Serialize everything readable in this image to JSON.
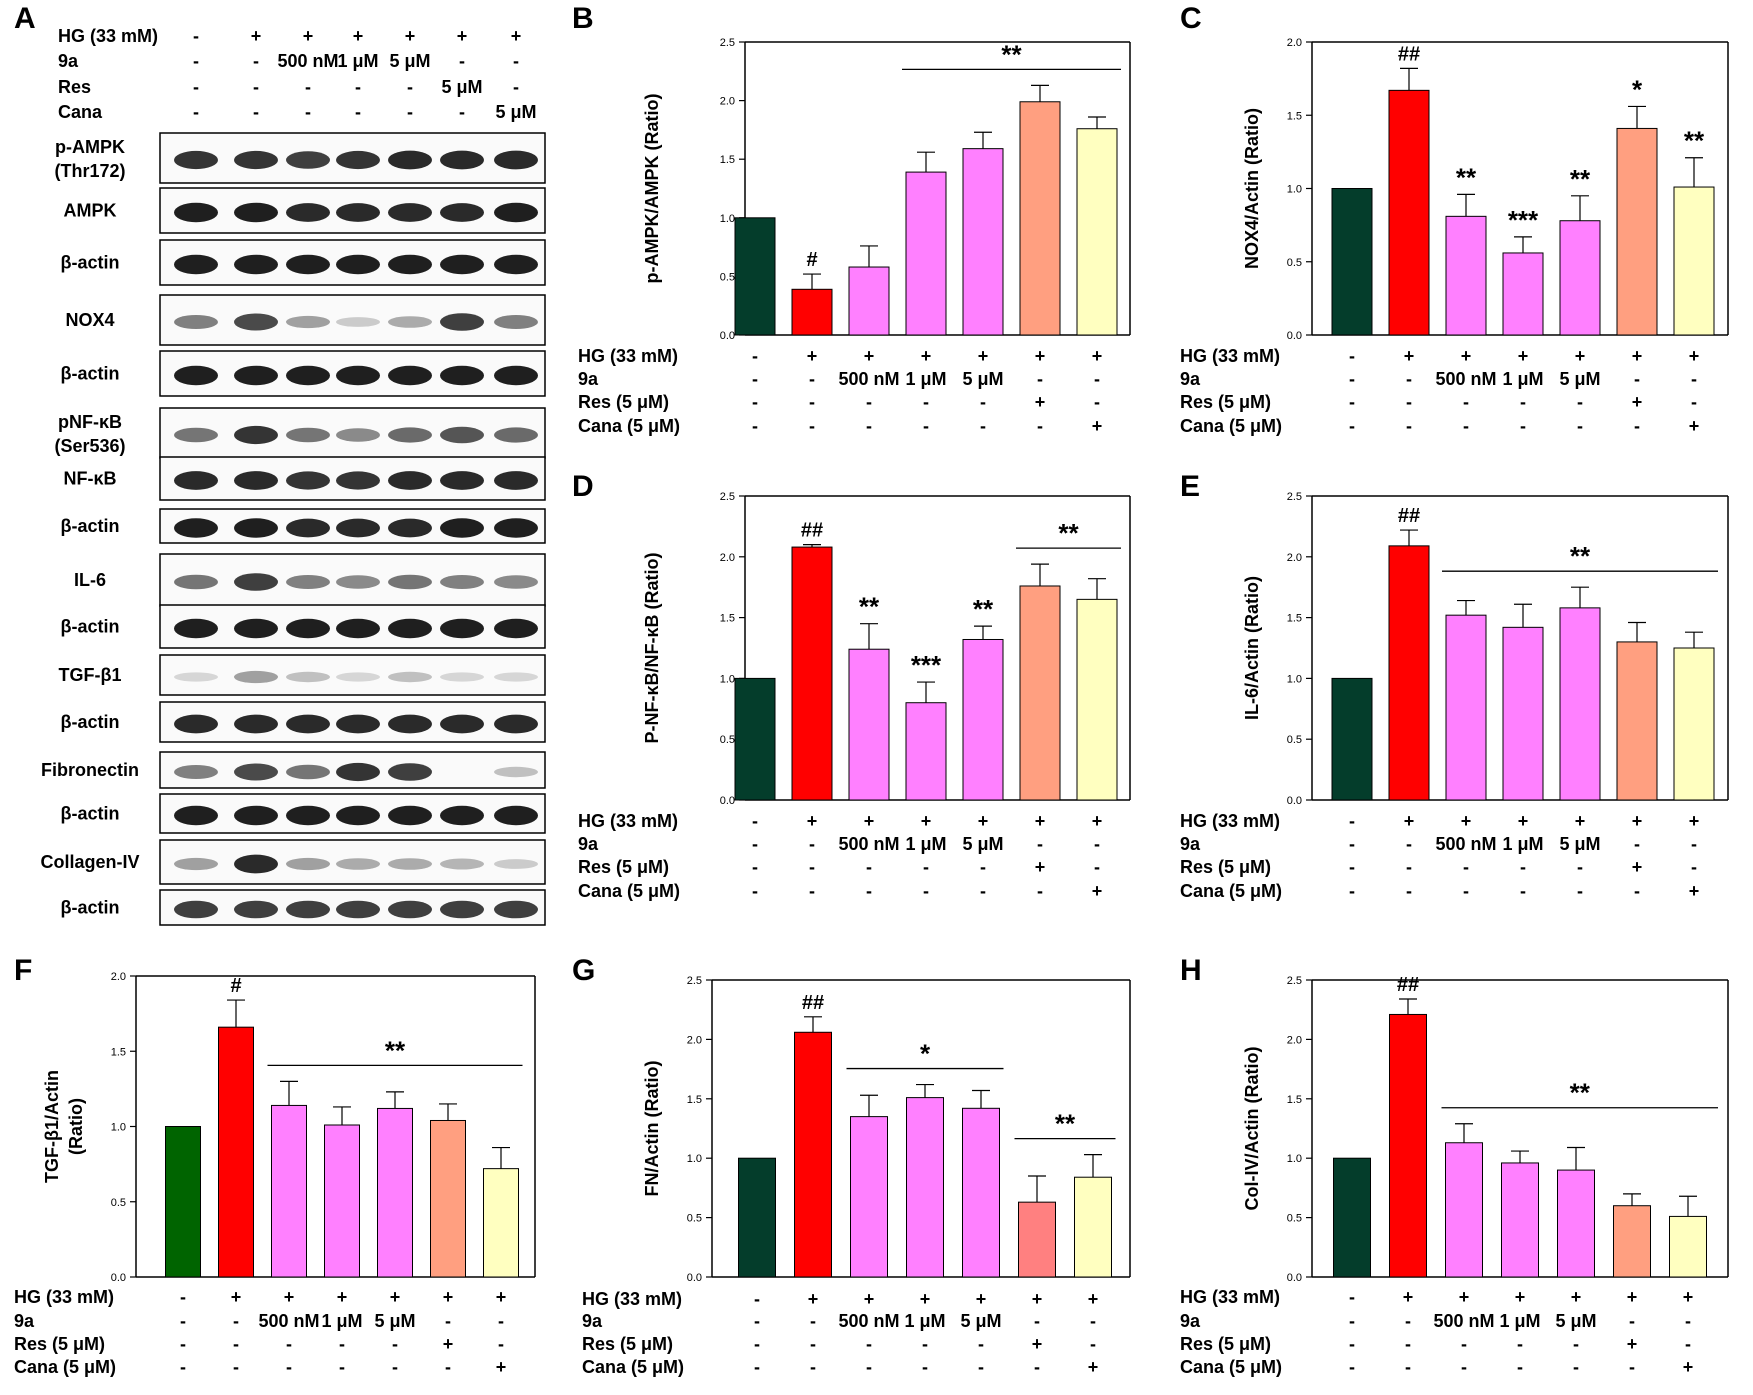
{
  "figure": {
    "panel_letters": [
      "A",
      "B",
      "C",
      "D",
      "E",
      "F",
      "G",
      "H"
    ]
  },
  "panel_a": {
    "treatment_rows": [
      {
        "label": "HG (33 mM)",
        "cells": [
          "-",
          "+",
          "+",
          "+",
          "+",
          "+",
          "+"
        ]
      },
      {
        "label": "9a",
        "cells": [
          "-",
          "-",
          "500 nM",
          "1 μM",
          "5 μM",
          "-",
          "-"
        ]
      },
      {
        "label": "Res",
        "cells": [
          "-",
          "-",
          "-",
          "-",
          "-",
          "5 μM",
          "-"
        ]
      },
      {
        "label": "Cana",
        "cells": [
          "-",
          "-",
          "-",
          "-",
          "-",
          "-",
          "5 μM"
        ]
      }
    ],
    "blots": [
      {
        "label": "p-AMPK\n(Thr172)",
        "intensity": [
          0.85,
          0.85,
          0.8,
          0.85,
          0.9,
          0.9,
          0.9
        ]
      },
      {
        "label": "AMPK",
        "intensity": [
          0.95,
          0.95,
          0.9,
          0.9,
          0.9,
          0.9,
          0.95
        ]
      },
      {
        "label": "β-actin",
        "intensity": [
          0.95,
          0.95,
          0.95,
          0.95,
          0.95,
          0.95,
          0.95
        ]
      },
      {
        "label": "NOX4",
        "intensity": [
          0.5,
          0.75,
          0.35,
          0.15,
          0.3,
          0.8,
          0.5
        ]
      },
      {
        "label": "β-actin",
        "intensity": [
          0.95,
          0.95,
          0.95,
          0.95,
          0.95,
          0.95,
          0.95
        ]
      },
      {
        "label": "pNF-κB\n(Ser536)",
        "intensity": [
          0.55,
          0.85,
          0.55,
          0.45,
          0.6,
          0.7,
          0.6
        ]
      },
      {
        "label": "NF-κB",
        "intensity": [
          0.9,
          0.9,
          0.85,
          0.85,
          0.9,
          0.9,
          0.9
        ]
      },
      {
        "label": "β-actin",
        "intensity": [
          0.95,
          0.95,
          0.9,
          0.9,
          0.9,
          0.95,
          0.95
        ]
      },
      {
        "label": "IL-6",
        "intensity": [
          0.55,
          0.8,
          0.5,
          0.45,
          0.55,
          0.5,
          0.45
        ]
      },
      {
        "label": "β-actin",
        "intensity": [
          0.95,
          0.95,
          0.95,
          0.95,
          0.95,
          0.95,
          0.95
        ]
      },
      {
        "label": "TGF-β1",
        "intensity": [
          0.1,
          0.35,
          0.2,
          0.1,
          0.2,
          0.1,
          0.1
        ]
      },
      {
        "label": "β-actin",
        "intensity": [
          0.9,
          0.9,
          0.9,
          0.9,
          0.9,
          0.9,
          0.9
        ]
      },
      {
        "label": "Fibronectin",
        "intensity": [
          0.5,
          0.75,
          0.55,
          0.85,
          0.8,
          0.0,
          0.2
        ]
      },
      {
        "label": "β-actin",
        "intensity": [
          0.95,
          0.95,
          0.95,
          0.95,
          0.95,
          0.95,
          0.95
        ]
      },
      {
        "label": "Collagen-IV",
        "intensity": [
          0.35,
          0.9,
          0.35,
          0.3,
          0.3,
          0.25,
          0.15
        ]
      },
      {
        "label": "β-actin",
        "intensity": [
          0.8,
          0.8,
          0.8,
          0.8,
          0.8,
          0.8,
          0.8
        ]
      }
    ]
  },
  "chart_data": [
    {
      "type": "bar",
      "panel": "B",
      "ylabel": "p-AMPK/AMPK (Ratio)",
      "ylim": [
        0,
        2.5
      ],
      "yticks": [
        "0.0",
        "0.5",
        "1.0",
        "1.5",
        "2.0",
        "2.5"
      ],
      "values": [
        1.0,
        0.39,
        0.58,
        1.39,
        1.59,
        1.99,
        1.76
      ],
      "errors": [
        0,
        0.13,
        0.18,
        0.17,
        0.14,
        0.14,
        0.1
      ],
      "colors": [
        "#043d2b",
        "#ff0000",
        "#ff80ff",
        "#ff80ff",
        "#ff80ff",
        "#ff9f80",
        "#ffffc0"
      ],
      "annotations": [
        {
          "bar": 1,
          "text": "#"
        }
      ],
      "brackets": [
        {
          "from": 3,
          "to": 6,
          "text": "**"
        }
      ],
      "treatment_rows": [
        {
          "label": "HG (33 mM)",
          "cells": [
            "-",
            "+",
            "+",
            "+",
            "+",
            "+",
            "+"
          ]
        },
        {
          "label": "9a",
          "cells": [
            "-",
            "-",
            "500 nM",
            "1 μM",
            "5 μM",
            "-",
            "-"
          ]
        },
        {
          "label": "Res (5 μM)",
          "cells": [
            "-",
            "-",
            "-",
            "-",
            "-",
            "+",
            "-"
          ]
        },
        {
          "label": "Cana (5 μM)",
          "cells": [
            "-",
            "-",
            "-",
            "-",
            "-",
            "-",
            "+"
          ]
        }
      ]
    },
    {
      "type": "bar",
      "panel": "C",
      "ylabel": "NOX4/Actin (Ratio)",
      "ylim": [
        0,
        2.0
      ],
      "yticks": [
        "0.0",
        "0.5",
        "1.0",
        "1.5",
        "2.0"
      ],
      "values": [
        1.0,
        1.67,
        0.81,
        0.56,
        0.78,
        1.41,
        1.01
      ],
      "errors": [
        0,
        0.15,
        0.15,
        0.11,
        0.17,
        0.15,
        0.2
      ],
      "colors": [
        "#043d2b",
        "#ff0000",
        "#ff80ff",
        "#ff80ff",
        "#ff80ff",
        "#ff9f80",
        "#ffffc0"
      ],
      "annotations": [
        {
          "bar": 1,
          "text": "##"
        },
        {
          "bar": 2,
          "text": "**"
        },
        {
          "bar": 3,
          "text": "***"
        },
        {
          "bar": 4,
          "text": "**"
        },
        {
          "bar": 5,
          "text": "*"
        },
        {
          "bar": 6,
          "text": "**"
        }
      ],
      "brackets": [],
      "treatment_rows": [
        {
          "label": "HG (33 mM)",
          "cells": [
            "-",
            "+",
            "+",
            "+",
            "+",
            "+",
            "+"
          ]
        },
        {
          "label": "9a",
          "cells": [
            "-",
            "-",
            "500 nM",
            "1 μM",
            "5 μM",
            "-",
            "-"
          ]
        },
        {
          "label": "Res (5 μM)",
          "cells": [
            "-",
            "-",
            "-",
            "-",
            "-",
            "+",
            "-"
          ]
        },
        {
          "label": "Cana (5 μM)",
          "cells": [
            "-",
            "-",
            "-",
            "-",
            "-",
            "-",
            "+"
          ]
        }
      ]
    },
    {
      "type": "bar",
      "panel": "D",
      "ylabel": "P-NF-κB/NF-κB (Ratio)",
      "ylim": [
        0,
        2.5
      ],
      "yticks": [
        "0.0",
        "0.5",
        "1.0",
        "1.5",
        "2.0",
        "2.5"
      ],
      "values": [
        1.0,
        2.08,
        1.24,
        0.8,
        1.32,
        1.76,
        1.65
      ],
      "errors": [
        0,
        0.02,
        0.21,
        0.17,
        0.11,
        0.18,
        0.17
      ],
      "colors": [
        "#043d2b",
        "#ff0000",
        "#ff80ff",
        "#ff80ff",
        "#ff80ff",
        "#ff9f80",
        "#ffffc0"
      ],
      "annotations": [
        {
          "bar": 1,
          "text": "##"
        },
        {
          "bar": 2,
          "text": "**"
        },
        {
          "bar": 3,
          "text": "***"
        },
        {
          "bar": 4,
          "text": "**"
        }
      ],
      "brackets": [
        {
          "from": 5,
          "to": 6,
          "text": "**"
        }
      ],
      "treatment_rows": [
        {
          "label": "HG (33 mM)",
          "cells": [
            "-",
            "+",
            "+",
            "+",
            "+",
            "+",
            "+"
          ]
        },
        {
          "label": "9a",
          "cells": [
            "-",
            "-",
            "500 nM",
            "1 μM",
            "5 μM",
            "-",
            "-"
          ]
        },
        {
          "label": "Res (5 μM)",
          "cells": [
            "-",
            "-",
            "-",
            "-",
            "-",
            "+",
            "-"
          ]
        },
        {
          "label": "Cana (5 μM)",
          "cells": [
            "-",
            "-",
            "-",
            "-",
            "-",
            "-",
            "+"
          ]
        }
      ]
    },
    {
      "type": "bar",
      "panel": "E",
      "ylabel": "IL-6/Actin (Ratio)",
      "ylim": [
        0,
        2.5
      ],
      "yticks": [
        "0.0",
        "0.5",
        "1.0",
        "1.5",
        "2.0",
        "2.5"
      ],
      "values": [
        1.0,
        2.09,
        1.52,
        1.42,
        1.58,
        1.3,
        1.25
      ],
      "errors": [
        0,
        0.13,
        0.12,
        0.19,
        0.17,
        0.16,
        0.13
      ],
      "colors": [
        "#043d2b",
        "#ff0000",
        "#ff80ff",
        "#ff80ff",
        "#ff80ff",
        "#ff9f80",
        "#ffffc0"
      ],
      "annotations": [
        {
          "bar": 1,
          "text": "##"
        }
      ],
      "brackets": [
        {
          "from": 2,
          "to": 6,
          "text": "**",
          "extend": true
        }
      ],
      "treatment_rows": [
        {
          "label": "HG (33 mM)",
          "cells": [
            "-",
            "+",
            "+",
            "+",
            "+",
            "+",
            "+"
          ]
        },
        {
          "label": "9a",
          "cells": [
            "-",
            "-",
            "500 nM",
            "1 μM",
            "5 μM",
            "-",
            "-"
          ]
        },
        {
          "label": "Res (5 μM)",
          "cells": [
            "-",
            "-",
            "-",
            "-",
            "-",
            "+",
            "-"
          ]
        },
        {
          "label": "Cana (5 μM)",
          "cells": [
            "-",
            "-",
            "-",
            "-",
            "-",
            "-",
            "+"
          ]
        }
      ]
    },
    {
      "type": "bar",
      "panel": "F",
      "ylabel": "TGF-β1/Actin\n(Ratio)",
      "ylim": [
        0,
        2.0
      ],
      "yticks": [
        "0.0",
        "0.5",
        "1.0",
        "1.5",
        "2.0"
      ],
      "values": [
        1.0,
        1.66,
        1.14,
        1.01,
        1.12,
        1.04,
        0.72
      ],
      "errors": [
        0,
        0.18,
        0.16,
        0.12,
        0.11,
        0.11,
        0.14
      ],
      "colors": [
        "#006400",
        "#ff0000",
        "#ff80ff",
        "#ff80ff",
        "#ff80ff",
        "#ff9f80",
        "#ffffc0"
      ],
      "annotations": [
        {
          "bar": 1,
          "text": "#"
        }
      ],
      "brackets": [
        {
          "from": 2,
          "to": 6,
          "text": "**"
        }
      ],
      "treatment_rows": [
        {
          "label": "HG (33 mM)",
          "cells": [
            "-",
            "+",
            "+",
            "+",
            "+",
            "+",
            "+"
          ]
        },
        {
          "label": "9a",
          "cells": [
            "-",
            "-",
            "500 nM",
            "1 μM",
            "5 μM",
            "-",
            "-"
          ]
        },
        {
          "label": "Res (5 μM)",
          "cells": [
            "-",
            "-",
            "-",
            "-",
            "-",
            "+",
            "-"
          ]
        },
        {
          "label": "Cana (5 μM)",
          "cells": [
            "-",
            "-",
            "-",
            "-",
            "-",
            "-",
            "+"
          ]
        }
      ]
    },
    {
      "type": "bar",
      "panel": "G",
      "ylabel": "FN/Actin (Ratio)",
      "ylim": [
        0,
        2.5
      ],
      "yticks": [
        "0.0",
        "0.5",
        "1.0",
        "1.5",
        "2.0",
        "2.5"
      ],
      "values": [
        1.0,
        2.06,
        1.35,
        1.51,
        1.42,
        0.63,
        0.84
      ],
      "errors": [
        0,
        0.13,
        0.18,
        0.11,
        0.15,
        0.22,
        0.19
      ],
      "colors": [
        "#043d2b",
        "#ff0000",
        "#ff80ff",
        "#ff80ff",
        "#ff80ff",
        "#ff8080",
        "#ffffc0"
      ],
      "annotations": [
        {
          "bar": 1,
          "text": "##"
        }
      ],
      "brackets": [
        {
          "from": 2,
          "to": 4,
          "text": "*"
        },
        {
          "from": 5,
          "to": 6,
          "text": "**"
        }
      ],
      "treatment_rows": [
        {
          "label": "HG (33 mM)",
          "cells": [
            "-",
            "+",
            "+",
            "+",
            "+",
            "+",
            "+"
          ]
        },
        {
          "label": "9a",
          "cells": [
            "-",
            "-",
            "500 nM",
            "1 μM",
            "5 μM",
            "-",
            "-"
          ]
        },
        {
          "label": "Res (5 μM)",
          "cells": [
            "-",
            "-",
            "-",
            "-",
            "-",
            "+",
            "-"
          ]
        },
        {
          "label": "Cana (5 μM)",
          "cells": [
            "-",
            "-",
            "-",
            "-",
            "-",
            "-",
            "+"
          ]
        }
      ]
    },
    {
      "type": "bar",
      "panel": "H",
      "ylabel": "Col-IV/Actin (Ratio)",
      "ylim": [
        0,
        2.5
      ],
      "yticks": [
        "0.0",
        "0.5",
        "1.0",
        "1.5",
        "2.0",
        "2.5"
      ],
      "values": [
        1.0,
        2.21,
        1.13,
        0.96,
        0.9,
        0.6,
        0.51
      ],
      "errors": [
        0,
        0.13,
        0.16,
        0.1,
        0.19,
        0.1,
        0.17
      ],
      "colors": [
        "#043d2b",
        "#ff0000",
        "#ff80ff",
        "#ff80ff",
        "#ff80ff",
        "#ff9f80",
        "#ffffc0"
      ],
      "annotations": [
        {
          "bar": 1,
          "text": "##"
        }
      ],
      "brackets": [
        {
          "from": 2,
          "to": 6,
          "text": "**",
          "extend": true
        }
      ],
      "treatment_rows": [
        {
          "label": "HG (33 mM)",
          "cells": [
            "-",
            "+",
            "+",
            "+",
            "+",
            "+",
            "+"
          ]
        },
        {
          "label": "9a",
          "cells": [
            "-",
            "-",
            "500 nM",
            "1 μM",
            "5 μM",
            "-",
            "-"
          ]
        },
        {
          "label": "Res (5 μM)",
          "cells": [
            "-",
            "-",
            "-",
            "-",
            "-",
            "+",
            "-"
          ]
        },
        {
          "label": "Cana (5 μM)",
          "cells": [
            "-",
            "-",
            "-",
            "-",
            "-",
            "-",
            "+"
          ]
        }
      ]
    }
  ]
}
